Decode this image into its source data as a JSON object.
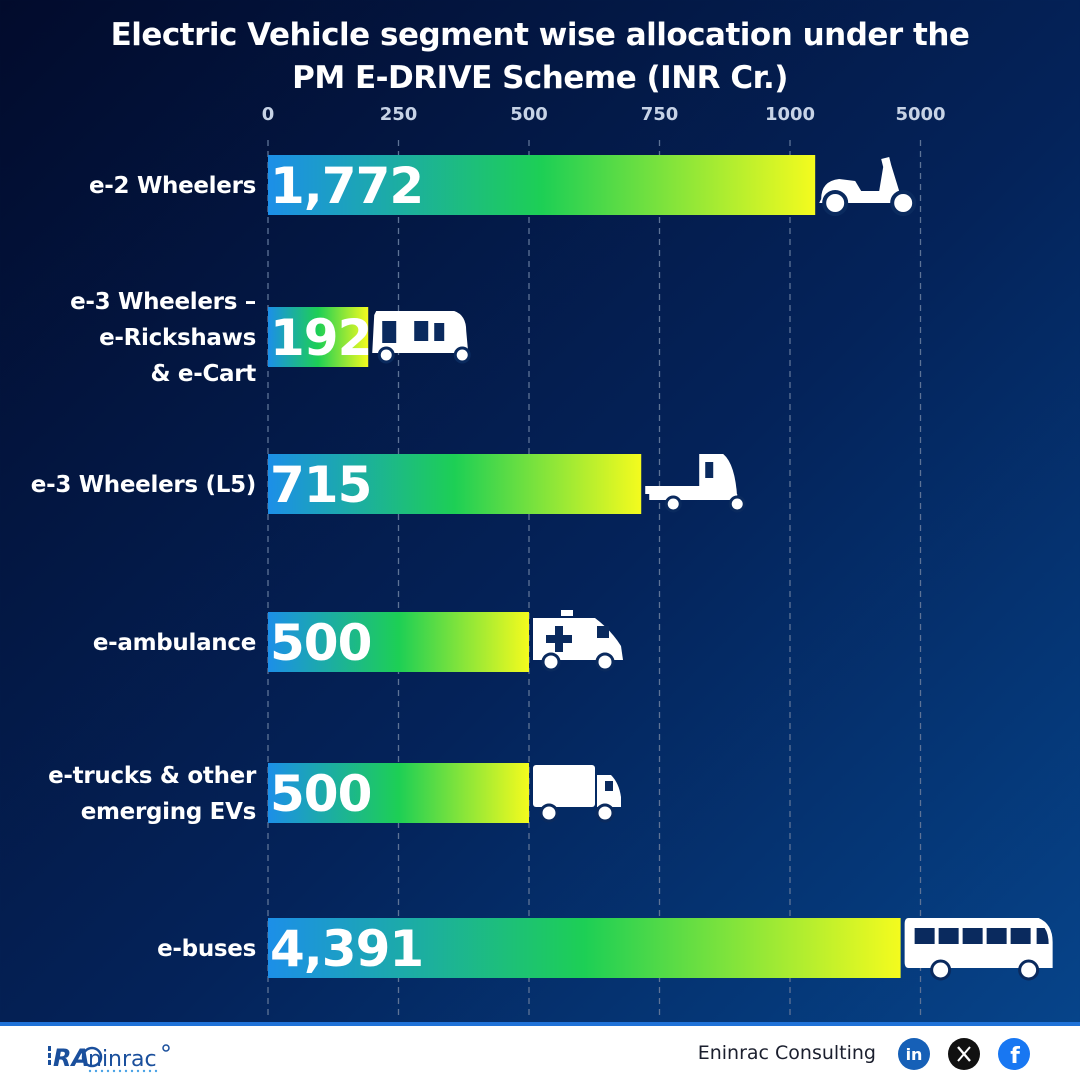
{
  "title_lines": [
    "Electric Vehicle segment wise allocation under the",
    "PM E-DRIVE Scheme (INR Cr.)"
  ],
  "chart_data": {
    "type": "bar",
    "orientation": "horizontal",
    "title": "Electric Vehicle segment wise allocation under the PM E-DRIVE Scheme (INR Cr.)",
    "x_ticks": [
      "0",
      "250",
      "500",
      "750",
      "1000",
      "5000"
    ],
    "axis_scale": "piecewise: linear 0-1000, then 1000-5000 compressed to one tick interval",
    "grid": true,
    "categories": [
      [
        "e-2 Wheelers"
      ],
      [
        "e-3 Wheelers –",
        "e-Rickshaws",
        "& e-Cart"
      ],
      [
        "e-3 Wheelers (L5)"
      ],
      [
        "e-ambulance"
      ],
      [
        "e-trucks & other",
        "emerging EVs"
      ],
      [
        "e-buses"
      ]
    ],
    "values": [
      1772,
      192,
      715,
      500,
      500,
      4391
    ],
    "value_labels": [
      "1,772",
      "192",
      "715",
      "500",
      "500",
      "4,391"
    ],
    "icons": [
      "scooter-icon",
      "e-rickshaw-icon",
      "cargo-three-wheeler-icon",
      "ambulance-icon",
      "truck-icon",
      "bus-icon"
    ],
    "bar_gradient": [
      "#1c8fe8",
      "#1dcf55",
      "#f4fb1e"
    ]
  },
  "footer": {
    "brand": "Eninrac Consulting",
    "logo_text": "RAC eninrac",
    "social_icons": [
      "linkedin-icon",
      "x-icon",
      "facebook-icon"
    ]
  }
}
